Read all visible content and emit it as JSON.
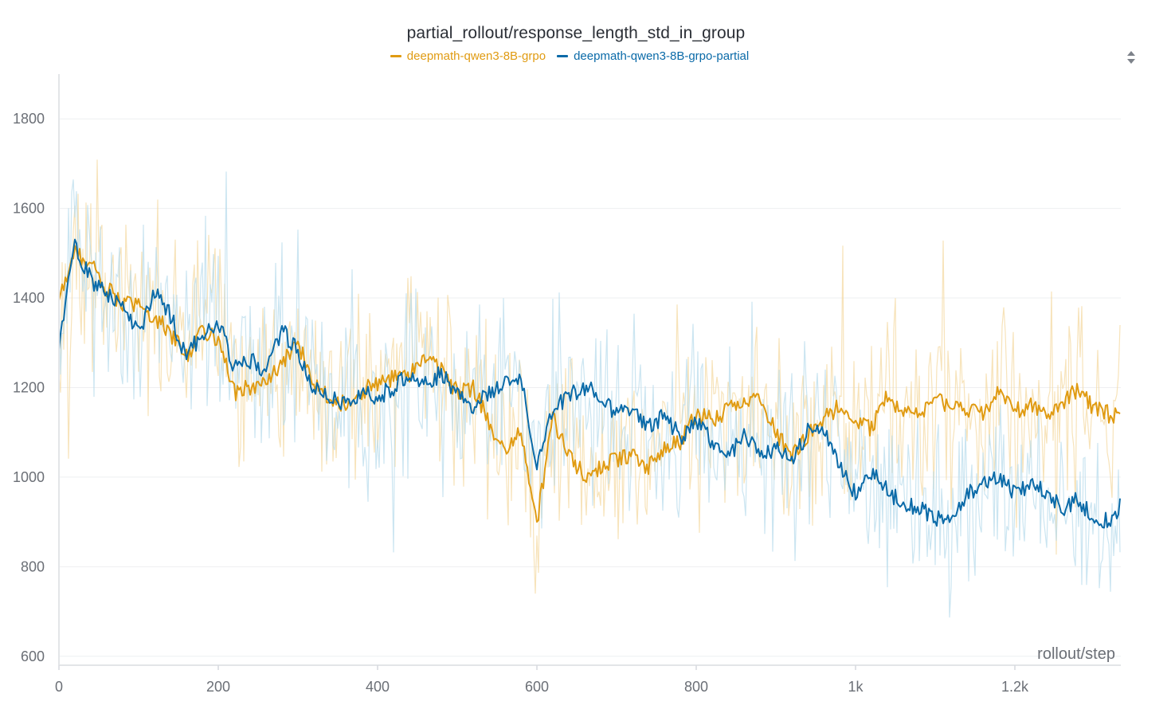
{
  "chart_data": {
    "type": "line",
    "title": "partial_rollout/response_length_std_in_group",
    "xlabel": "rollout/step",
    "ylabel": "",
    "xlim": [
      0,
      1333
    ],
    "ylim": [
      580,
      1900
    ],
    "x_ticks": [
      {
        "value": 0,
        "label": "0"
      },
      {
        "value": 200,
        "label": "200"
      },
      {
        "value": 400,
        "label": "400"
      },
      {
        "value": 600,
        "label": "600"
      },
      {
        "value": 800,
        "label": "800"
      },
      {
        "value": 1000,
        "label": "1k"
      },
      {
        "value": 1200,
        "label": "1.2k"
      }
    ],
    "y_ticks": [
      {
        "value": 600,
        "label": "600"
      },
      {
        "value": 800,
        "label": "800"
      },
      {
        "value": 1000,
        "label": "1000"
      },
      {
        "value": 1200,
        "label": "1200"
      },
      {
        "value": 1400,
        "label": "1400"
      },
      {
        "value": 1600,
        "label": "1600"
      },
      {
        "value": 1800,
        "label": "1800"
      }
    ],
    "grid": true,
    "legend_position": "top-center",
    "smoothed": true,
    "raw_data_shown_faded": true,
    "series": [
      {
        "name": "deepmath-qwen3-8B-grpo",
        "color": "#e09b12",
        "raw_color": "#f4d9a3",
        "x": [
          0,
          20,
          40,
          60,
          80,
          100,
          120,
          140,
          160,
          180,
          200,
          220,
          240,
          260,
          280,
          300,
          320,
          340,
          360,
          380,
          400,
          420,
          440,
          460,
          480,
          500,
          520,
          540,
          560,
          580,
          600,
          620,
          640,
          660,
          680,
          700,
          720,
          740,
          760,
          780,
          800,
          820,
          840,
          860,
          880,
          900,
          920,
          940,
          960,
          980,
          1000,
          1020,
          1040,
          1060,
          1080,
          1100,
          1120,
          1140,
          1160,
          1180,
          1200,
          1220,
          1240,
          1260,
          1280,
          1300,
          1320,
          1333
        ],
        "y": [
          1400,
          1500,
          1480,
          1420,
          1390,
          1380,
          1360,
          1320,
          1270,
          1330,
          1310,
          1190,
          1200,
          1210,
          1250,
          1300,
          1210,
          1180,
          1160,
          1190,
          1210,
          1220,
          1230,
          1270,
          1240,
          1190,
          1200,
          1120,
          1050,
          1100,
          900,
          1130,
          1050,
          1000,
          1020,
          1040,
          1050,
          1020,
          1060,
          1080,
          1140,
          1130,
          1150,
          1160,
          1180,
          1100,
          1050,
          1090,
          1130,
          1160,
          1130,
          1110,
          1180,
          1150,
          1140,
          1170,
          1160,
          1150,
          1140,
          1190,
          1150,
          1160,
          1140,
          1170,
          1200,
          1150,
          1140,
          1140
        ],
        "y_range": [
          740,
          1900
        ]
      },
      {
        "name": "deepmath-qwen3-8B-grpo-partial",
        "color": "#0a6aa8",
        "raw_color": "#b9dcec",
        "x": [
          0,
          20,
          40,
          60,
          80,
          100,
          120,
          140,
          160,
          180,
          200,
          220,
          240,
          260,
          280,
          300,
          320,
          340,
          360,
          380,
          400,
          420,
          440,
          460,
          480,
          500,
          520,
          540,
          560,
          580,
          600,
          620,
          640,
          660,
          680,
          700,
          720,
          740,
          760,
          780,
          800,
          820,
          840,
          860,
          880,
          900,
          920,
          940,
          960,
          980,
          1000,
          1020,
          1040,
          1060,
          1080,
          1100,
          1120,
          1140,
          1160,
          1180,
          1200,
          1220,
          1240,
          1260,
          1280,
          1300,
          1320,
          1333
        ],
        "y": [
          1290,
          1520,
          1440,
          1410,
          1380,
          1320,
          1410,
          1360,
          1270,
          1320,
          1350,
          1240,
          1260,
          1240,
          1330,
          1280,
          1200,
          1180,
          1160,
          1190,
          1180,
          1200,
          1230,
          1210,
          1230,
          1180,
          1160,
          1190,
          1210,
          1220,
          1020,
          1150,
          1180,
          1200,
          1180,
          1140,
          1150,
          1110,
          1140,
          1090,
          1120,
          1080,
          1050,
          1090,
          1050,
          1060,
          1040,
          1100,
          1100,
          1030,
          960,
          1010,
          970,
          940,
          930,
          910,
          920,
          960,
          980,
          1000,
          960,
          990,
          960,
          930,
          950,
          910,
          900,
          940
        ],
        "y_range": [
          650,
          1810
        ]
      }
    ]
  },
  "ui": {
    "sort_control_icon": "sort-up-down-icon"
  }
}
